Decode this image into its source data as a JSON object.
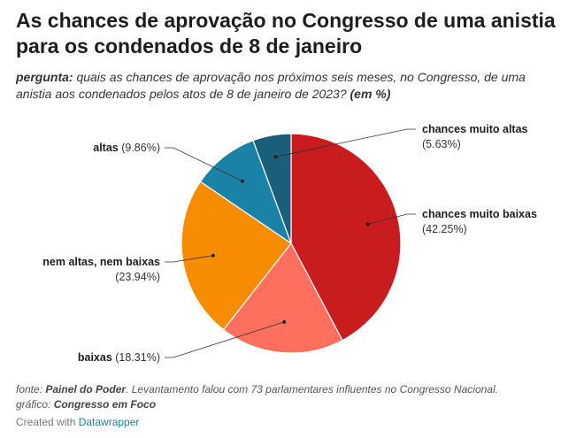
{
  "title": "As chances de aprovação no Congresso de uma anistia para os condenados de 8 de janeiro",
  "subtitle": {
    "lead": "pergunta:",
    "text": " quais as chances de aprovação nos próximos seis meses, no Congresso, de uma anistia aos condenados pelos atos de 8 de janeiro de 2023?",
    "unit": " (em %)"
  },
  "notes": {
    "source_prefix": "fonte: ",
    "source": "Painel do Poder",
    "source_text": ". Levantamento falou com 73 parlamentares influentes no Congresso Nacional.",
    "graphic_prefix": "gráfico: ",
    "graphic": "Congresso em Foco"
  },
  "credit": {
    "prefix": "Created with ",
    "link": "Datawrapper"
  },
  "chart_data": {
    "type": "pie",
    "unit": "%",
    "slices": [
      {
        "name": "chances muito baixas",
        "value": 42.25,
        "color": "#c91c1f"
      },
      {
        "name": "baixas",
        "value": 18.31,
        "color": "#ff6f5e"
      },
      {
        "name": "nem altas, nem baixas",
        "value": 23.94,
        "color": "#f68c00"
      },
      {
        "name": "altas",
        "value": 9.86,
        "color": "#1a82a6"
      },
      {
        "name": "chances muito altas",
        "value": 5.63,
        "color": "#195f7a"
      }
    ]
  }
}
